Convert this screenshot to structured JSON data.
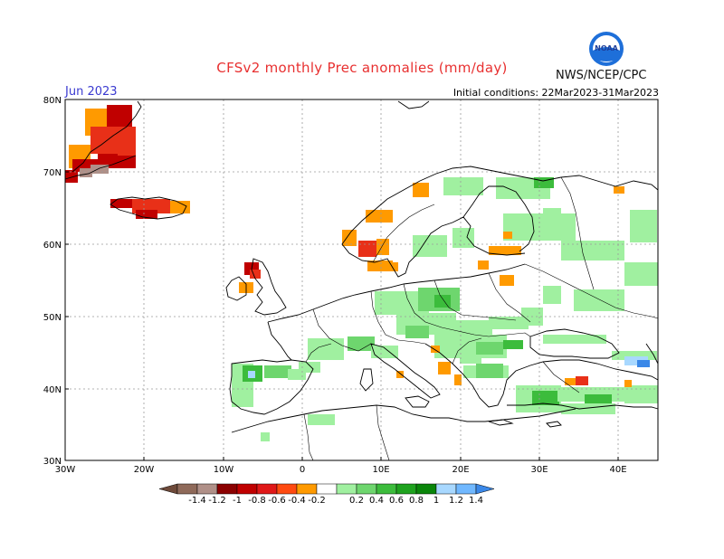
{
  "title": "CFSv2 monthly Prec anomalies (mm/day)",
  "month": "Jun 2023",
  "initial_conditions": "Initial conditions: 22Mar2023-31Mar2023",
  "agency": "NWS/NCEP/CPC",
  "logo_text": "NOAA",
  "lat_labels": [
    "80N",
    "70N",
    "60N",
    "50N",
    "40N",
    "30N"
  ],
  "lon_labels": [
    "30W",
    "20W",
    "10W",
    "0",
    "10E",
    "20E",
    "30E",
    "40E"
  ],
  "colorbar": {
    "colors": [
      "#6e4a3a",
      "#8f6a5a",
      "#b09088",
      "#8b0000",
      "#c00000",
      "#e01818",
      "#ff4a10",
      "#ff9a00",
      "#ffffff",
      "#a0f0a0",
      "#6ed66e",
      "#3cbc3c",
      "#1ea21e",
      "#0a860a",
      "#a8d8ff",
      "#70b8ff",
      "#3a88e8"
    ],
    "labels": [
      "-1.4",
      "-1.2",
      "-1",
      "-0.8",
      "-0.6",
      "-0.4",
      "-0.2",
      "0.2",
      "0.4",
      "0.6",
      "0.8",
      "1",
      "1.2",
      "1.4"
    ]
  },
  "anomaly_palette": {
    "dark_red": "#c00000",
    "red": "#e83018",
    "orange": "#ff9a00",
    "brown": "#b09088",
    "light_green": "#a0f0a0",
    "green": "#6ed66e",
    "mid_green": "#3cbc3c",
    "dark_green": "#1ea21e",
    "light_blue": "#a8d8ff",
    "blue": "#3a88e8"
  }
}
